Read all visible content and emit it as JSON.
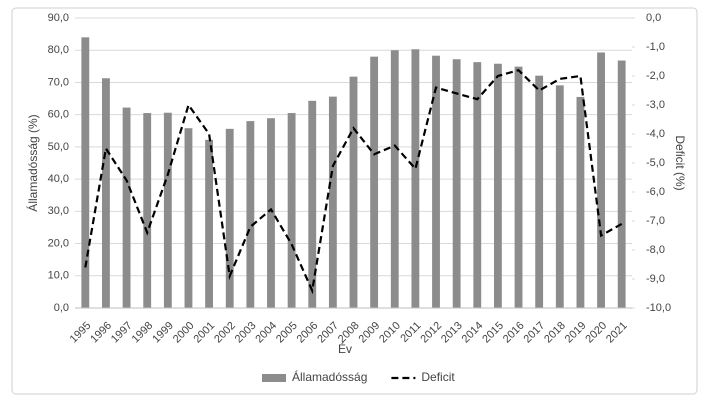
{
  "chart_data": {
    "type": "bar",
    "categories": [
      "1995",
      "1996",
      "1997",
      "1998",
      "1999",
      "2000",
      "2001",
      "2002",
      "2003",
      "2004",
      "2005",
      "2006",
      "2007",
      "2008",
      "2009",
      "2010",
      "2011",
      "2012",
      "2013",
      "2014",
      "2015",
      "2016",
      "2017",
      "2018",
      "2019",
      "2020",
      "2021"
    ],
    "series": [
      {
        "name": "Államadósság",
        "type": "bar",
        "color": "#8c8c8c",
        "values": [
          84.0,
          71.3,
          62.2,
          60.5,
          60.6,
          55.8,
          52.2,
          55.6,
          58.0,
          58.9,
          60.5,
          64.3,
          65.6,
          71.8,
          78.0,
          80.0,
          80.3,
          78.3,
          77.2,
          76.3,
          75.8,
          74.9,
          72.1,
          69.1,
          65.5,
          79.3,
          76.8
        ]
      },
      {
        "name": "Deficit",
        "type": "line",
        "color": "#000000",
        "axis": "y2",
        "values": [
          -8.6,
          -4.5,
          -5.6,
          -7.4,
          -5.4,
          -3.0,
          -4.0,
          -8.9,
          -7.2,
          -6.6,
          -7.8,
          -9.4,
          -5.1,
          -3.8,
          -4.7,
          -4.4,
          -5.2,
          -2.4,
          -2.6,
          -2.8,
          -2.0,
          -1.8,
          -2.5,
          -2.1,
          -2.0,
          -7.5,
          -7.1
        ]
      }
    ],
    "xlabel": "Év",
    "ylabel": "Államadósság (%)",
    "y2label": "Deficit (%)",
    "ylim": [
      0,
      90
    ],
    "yticks": [
      {
        "value": 0,
        "label": "0,0"
      },
      {
        "value": 10,
        "label": "10,0"
      },
      {
        "value": 20,
        "label": "20,0"
      },
      {
        "value": 30,
        "label": "30,0"
      },
      {
        "value": 40,
        "label": "40,0"
      },
      {
        "value": 50,
        "label": "50,0"
      },
      {
        "value": 60,
        "label": "60,0"
      },
      {
        "value": 70,
        "label": "70,0"
      },
      {
        "value": 80,
        "label": "80,0"
      },
      {
        "value": 90,
        "label": "90,0"
      }
    ],
    "y2lim": [
      -10,
      0
    ],
    "y2ticks": [
      {
        "value": 0,
        "label": "0,0"
      },
      {
        "value": -1,
        "label": "-1,0"
      },
      {
        "value": -2,
        "label": "-2,0"
      },
      {
        "value": -3,
        "label": "-3,0"
      },
      {
        "value": -4,
        "label": "-4,0"
      },
      {
        "value": -5,
        "label": "-5,0"
      },
      {
        "value": -6,
        "label": "-6,0"
      },
      {
        "value": -7,
        "label": "-7,0"
      },
      {
        "value": -8,
        "label": "-8,0"
      },
      {
        "value": -9,
        "label": "-9,0"
      },
      {
        "value": -10,
        "label": "-10,0"
      }
    ],
    "grid": true,
    "legend": "bottom"
  }
}
